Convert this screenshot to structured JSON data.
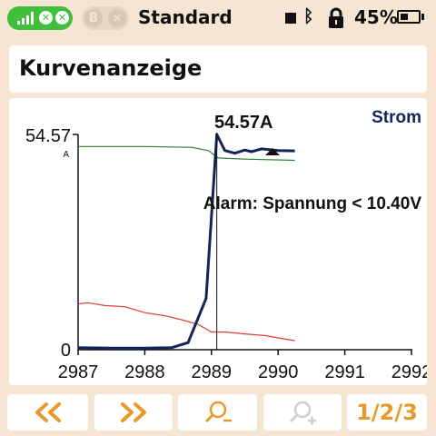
{
  "status": {
    "mode_label": "Standard",
    "b_label": "B",
    "battery_percent": "45%",
    "battery_level": 0.45,
    "icons": [
      "signal-icon",
      "close-icon",
      "bluetooth-icon",
      "lock-icon",
      "battery-icon"
    ]
  },
  "header": {
    "title": "Kurvenanzeige"
  },
  "chart": {
    "series_label": "Strom",
    "peak_label": "54.57A",
    "alarm_label": "Alarm: Spannung < 10.40V",
    "y_max_label": "54.57",
    "y_unit": "A",
    "y_min_label": "0",
    "x_ticks": [
      "2987",
      "2988",
      "2989",
      "2990",
      "2991",
      "2992"
    ]
  },
  "chart_data": {
    "type": "line",
    "xlim": [
      2987,
      2992
    ],
    "ylim": [
      0,
      54.57
    ],
    "ylabel": "A",
    "cursor_x": 2989.08,
    "series": [
      {
        "name": "Strom",
        "color": "#13245a",
        "x": [
          2987,
          2987.5,
          2988,
          2988.4,
          2988.65,
          2988.92,
          2989.08,
          2989.2,
          2989.35,
          2989.5,
          2989.6,
          2989.75,
          2990,
          2990.25
        ],
        "y": [
          0.5,
          0.4,
          0.4,
          0.5,
          1.8,
          13,
          54.57,
          50.5,
          49.8,
          50.6,
          50.2,
          50.9,
          50.5,
          50.4
        ]
      },
      {
        "color": "#2e7d32",
        "x": [
          2987,
          2988,
          2988.7,
          2988.95,
          2989.1,
          2989.5,
          2990.25
        ],
        "y": [
          51.5,
          51.5,
          51.3,
          50.5,
          48.6,
          48.3,
          48.0
        ]
      },
      {
        "color": "#e53935",
        "x": [
          2987,
          2987.15,
          2987.4,
          2987.7,
          2988.0,
          2988.3,
          2988.55,
          2988.8,
          2989.0,
          2989.2,
          2989.5,
          2989.8,
          2990.0,
          2990.25
        ],
        "y": [
          11.6,
          11.9,
          11.2,
          10.9,
          9.4,
          8.6,
          7.6,
          6.4,
          4.5,
          4.5,
          4.0,
          3.6,
          3.0,
          2.3
        ]
      }
    ]
  },
  "toolbar": {
    "page_indicator": "1/2/3",
    "buttons": [
      "chevrons-left-icon",
      "chevrons-right-icon",
      "zoom-out-icon",
      "zoom-in-icon"
    ]
  }
}
